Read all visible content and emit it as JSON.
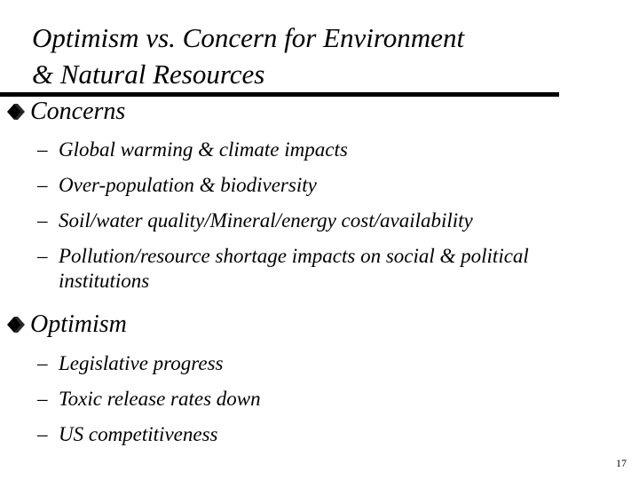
{
  "slide": {
    "title_line1": "Optimism vs. Concern for Environment",
    "title_line2": "& Natural Resources",
    "page_number": "17"
  },
  "sections": [
    {
      "heading": "Concerns",
      "bullet_icon": "diamond-bullet-icon",
      "items": [
        "Global warming & climate impacts",
        "Over-population & biodiversity",
        "Soil/water quality/Mineral/energy cost/availability",
        "Pollution/resource shortage impacts on social & political institutions"
      ]
    },
    {
      "heading": "Optimism",
      "bullet_icon": "diamond-bullet-icon",
      "items": [
        "Legislative progress",
        "Toxic release rates down",
        "US competitiveness"
      ]
    }
  ],
  "dash_glyph": "–"
}
